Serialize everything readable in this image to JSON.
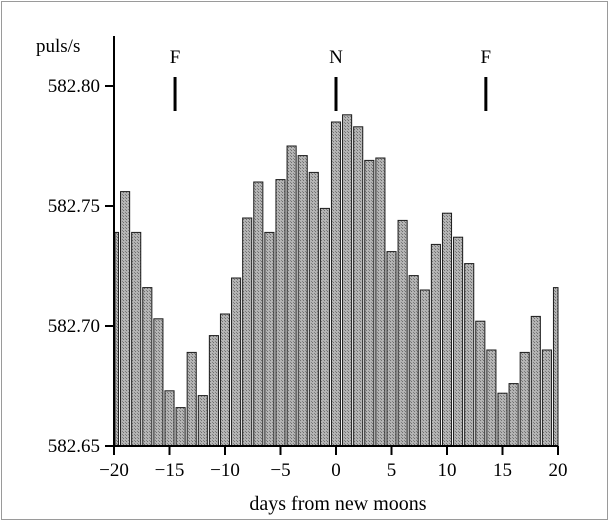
{
  "chart_data": {
    "type": "bar",
    "xlabel": "days from new moons",
    "ylabel": "puls/s",
    "xlim": [
      -20,
      20
    ],
    "ylim": [
      582.65,
      582.8
    ],
    "x_ticks": [
      -20,
      -15,
      -10,
      -5,
      0,
      5,
      10,
      15,
      20
    ],
    "x_tick_labels": [
      "−20",
      "−15",
      "−10",
      "−5",
      "0",
      "5",
      "10",
      "15",
      "20"
    ],
    "y_ticks": [
      582.65,
      582.7,
      582.75,
      582.8
    ],
    "y_tick_labels": [
      "582.65",
      "582.70",
      "582.75",
      "582.80"
    ],
    "x": [
      -20,
      -19,
      -18,
      -17,
      -16,
      -15,
      -14,
      -13,
      -12,
      -11,
      -10,
      -9,
      -8,
      -7,
      -6,
      -5,
      -4,
      -3,
      -2,
      -1,
      0,
      1,
      2,
      3,
      4,
      5,
      6,
      7,
      8,
      9,
      10,
      11,
      12,
      13,
      14,
      15,
      16,
      17,
      18,
      19,
      20
    ],
    "values": [
      582.739,
      582.756,
      582.739,
      582.716,
      582.703,
      582.673,
      582.666,
      582.689,
      582.671,
      582.696,
      582.705,
      582.72,
      582.745,
      582.76,
      582.739,
      582.761,
      582.775,
      582.771,
      582.764,
      582.749,
      582.785,
      582.788,
      582.783,
      582.769,
      582.77,
      582.731,
      582.744,
      582.721,
      582.715,
      582.734,
      582.747,
      582.737,
      582.726,
      582.702,
      582.69,
      582.672,
      582.676,
      582.689,
      582.704,
      582.69,
      582.716
    ],
    "markers": [
      {
        "label": "F",
        "x": -14.5
      },
      {
        "label": "N",
        "x": 0
      },
      {
        "label": "F",
        "x": 13.5
      }
    ],
    "bar_color": "#9a9a9a",
    "grid": false
  }
}
